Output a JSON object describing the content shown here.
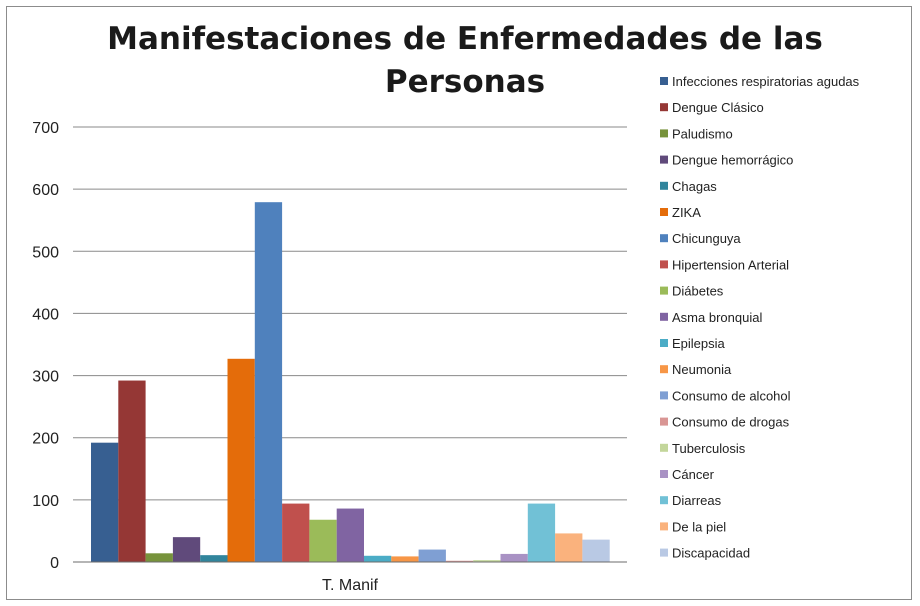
{
  "chart_data": {
    "type": "bar",
    "title_lines": [
      "Manifestaciones de Enfermedades de las",
      "Personas"
    ],
    "categories": [
      "T. Manif"
    ],
    "ylim": [
      0,
      700
    ],
    "yticks": [
      0,
      100,
      200,
      300,
      400,
      500,
      600,
      700
    ],
    "grid": true,
    "legend_position": "right",
    "series": [
      {
        "name": "Infecciones respiratorias agudas",
        "value": 192,
        "color": "#375f91"
      },
      {
        "name": "Dengue Clásico",
        "value": 292,
        "color": "#953735"
      },
      {
        "name": "Paludismo",
        "value": 14,
        "color": "#77933c"
      },
      {
        "name": "Dengue hemorrágico",
        "value": 40,
        "color": "#604a7b"
      },
      {
        "name": "Chagas",
        "value": 11,
        "color": "#31859c"
      },
      {
        "name": "ZIKA",
        "value": 327,
        "color": "#e46c0a"
      },
      {
        "name": "Chicunguya",
        "value": 579,
        "color": "#4f81bd"
      },
      {
        "name": "Hipertension Arterial",
        "value": 94,
        "color": "#c0504d"
      },
      {
        "name": "Diábetes",
        "value": 68,
        "color": "#9bbb59"
      },
      {
        "name": "Asma bronquial",
        "value": 86,
        "color": "#8064a2"
      },
      {
        "name": "Epilepsia",
        "value": 10,
        "color": "#4bacc6"
      },
      {
        "name": "Neumonia",
        "value": 9,
        "color": "#f79646"
      },
      {
        "name": "Consumo de alcohol",
        "value": 20,
        "color": "#7f9fd3"
      },
      {
        "name": "Consumo de drogas",
        "value": 2,
        "color": "#d99694"
      },
      {
        "name": "Tuberculosis",
        "value": 3,
        "color": "#c3d69b"
      },
      {
        "name": "Cáncer",
        "value": 13,
        "color": "#a992c4"
      },
      {
        "name": "Diarreas",
        "value": 94,
        "color": "#71c1d6"
      },
      {
        "name": "De la piel",
        "value": 46,
        "color": "#fab27d"
      },
      {
        "name": "Discapacidad",
        "value": 36,
        "color": "#b9c9e4"
      }
    ]
  }
}
